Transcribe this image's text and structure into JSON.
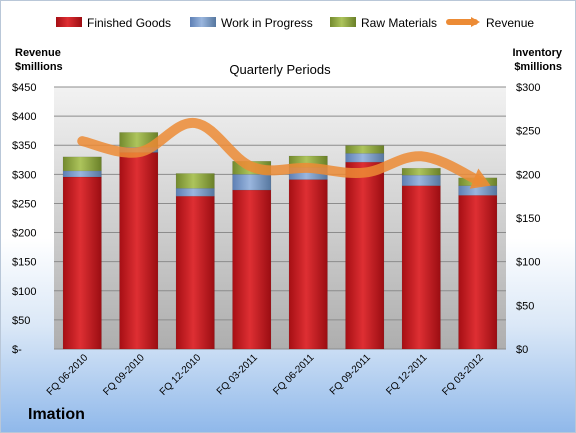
{
  "chart_data": {
    "type": "bar",
    "title": "Quarterly Periods",
    "company": "Imation",
    "left_axis": {
      "title_line1": "Revenue",
      "title_line2": "$millions",
      "min": 0,
      "max": 450,
      "step": 50,
      "tick_labels": [
        "$-",
        "$50",
        "$100",
        "$150",
        "$200",
        "$250",
        "$300",
        "$350",
        "$400",
        "$450"
      ]
    },
    "right_axis": {
      "title_line1": "Inventory",
      "title_line2": "$millions",
      "min": 0,
      "max": 300,
      "step": 50,
      "tick_labels": [
        "$0",
        "$50",
        "$100",
        "$150",
        "$200",
        "$250",
        "$300"
      ]
    },
    "categories": [
      "FQ 06-2010",
      "FQ 09-2010",
      "FQ 12-2010",
      "FQ 03-2011",
      "FQ 06-2011",
      "FQ 09-2011",
      "FQ 12-2011",
      "FQ 03-2012"
    ],
    "stacked": true,
    "series": [
      {
        "name": "Finished Goods",
        "axis": "right",
        "color": "#c0161c",
        "values": [
          197,
          225,
          175,
          182,
          194,
          214,
          187,
          176
        ]
      },
      {
        "name": "Work in Progress",
        "axis": "right",
        "color": "#7094c8",
        "values": [
          7,
          6,
          9,
          18,
          14,
          10,
          12,
          11
        ]
      },
      {
        "name": "Raw Materials",
        "axis": "right",
        "color": "#8faa3c",
        "values": [
          16,
          17,
          17,
          15,
          13,
          9,
          8,
          9
        ]
      },
      {
        "name": "Revenue",
        "axis": "left",
        "type": "line",
        "color": "#ec8b35",
        "values": [
          357,
          338,
          388,
          313,
          311,
          303,
          331,
          290
        ]
      }
    ],
    "grid": true,
    "legend_position": "top"
  }
}
